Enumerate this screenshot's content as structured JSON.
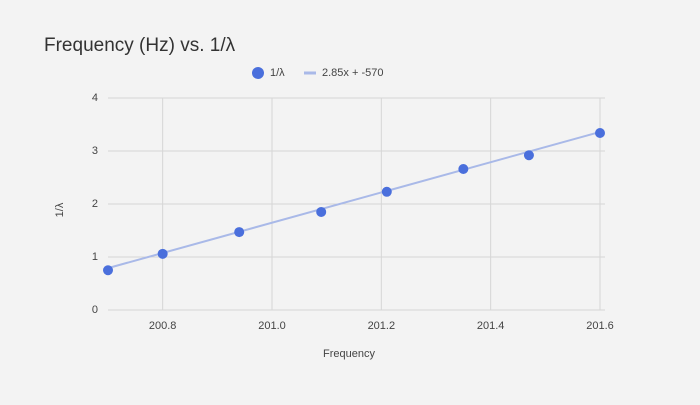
{
  "chart_data": {
    "type": "scatter",
    "title": "Frequency (Hz) vs. 1/λ",
    "x_label": "Frequency",
    "y_label": "1/λ",
    "series": [
      {
        "name": "1/λ",
        "color": "#4a6fdc",
        "x": [
          200.7,
          200.8,
          200.94,
          201.09,
          201.21,
          201.35,
          201.47,
          201.6
        ],
        "values": [
          0.75,
          1.06,
          1.47,
          1.85,
          2.23,
          2.66,
          2.92,
          3.34
        ]
      },
      {
        "name": "2.85x + -570",
        "color": "#a9b9e8",
        "x": [
          200.7,
          201.6
        ],
        "values": [
          0.79,
          3.36
        ]
      }
    ],
    "xlim": [
      200.7,
      201.6
    ],
    "xticks": [
      200.8,
      {
        "value": 201,
        "label": "201.0"
      },
      201.2,
      201.4,
      201.6
    ],
    "ylim": [
      0,
      4
    ],
    "yticks": [
      0,
      1,
      2,
      3,
      4
    ],
    "grid": true
  }
}
